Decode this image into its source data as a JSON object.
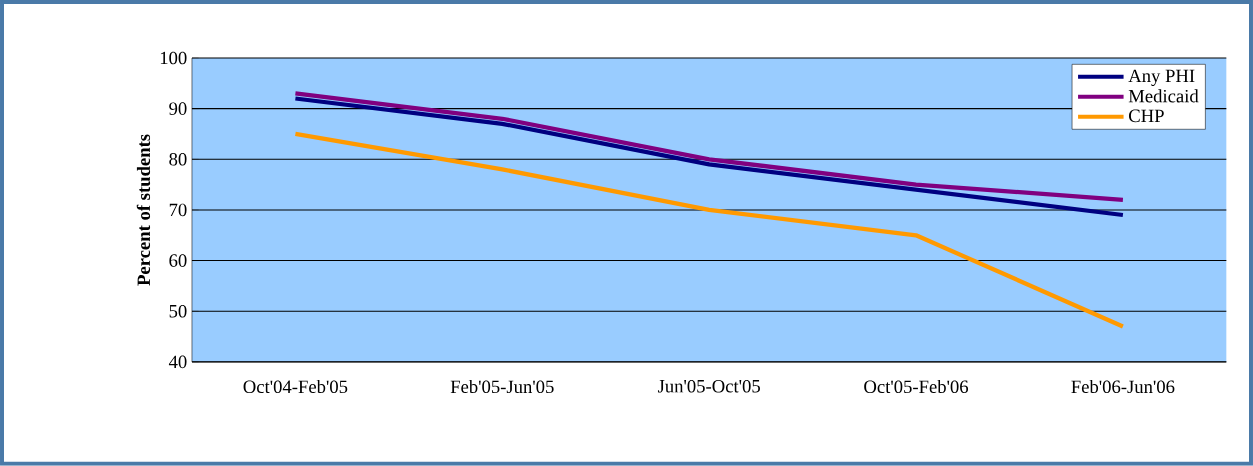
{
  "chart_data": {
    "type": "line",
    "ylabel": "Percent of students",
    "categories": [
      "Oct'04-Feb'05",
      "Feb'05-Jun'05",
      "Jun'05-Oct'05",
      "Oct'05-Feb'06",
      "Feb'06-Jun'06"
    ],
    "series": [
      {
        "name": "Any PHI",
        "color": "#000080",
        "values": [
          92,
          87,
          79,
          74,
          69
        ]
      },
      {
        "name": "Medicaid",
        "color": "#800080",
        "values": [
          93,
          88,
          80,
          75,
          72
        ]
      },
      {
        "name": "CHP",
        "color": "#ff9900",
        "values": [
          85,
          78,
          70,
          65,
          47
        ]
      }
    ],
    "ylim": [
      40,
      100
    ],
    "yticks": [
      40,
      50,
      60,
      70,
      80,
      90,
      100
    ],
    "grid": "y",
    "legend": "top right",
    "marker": "none",
    "line_style": "solid"
  }
}
